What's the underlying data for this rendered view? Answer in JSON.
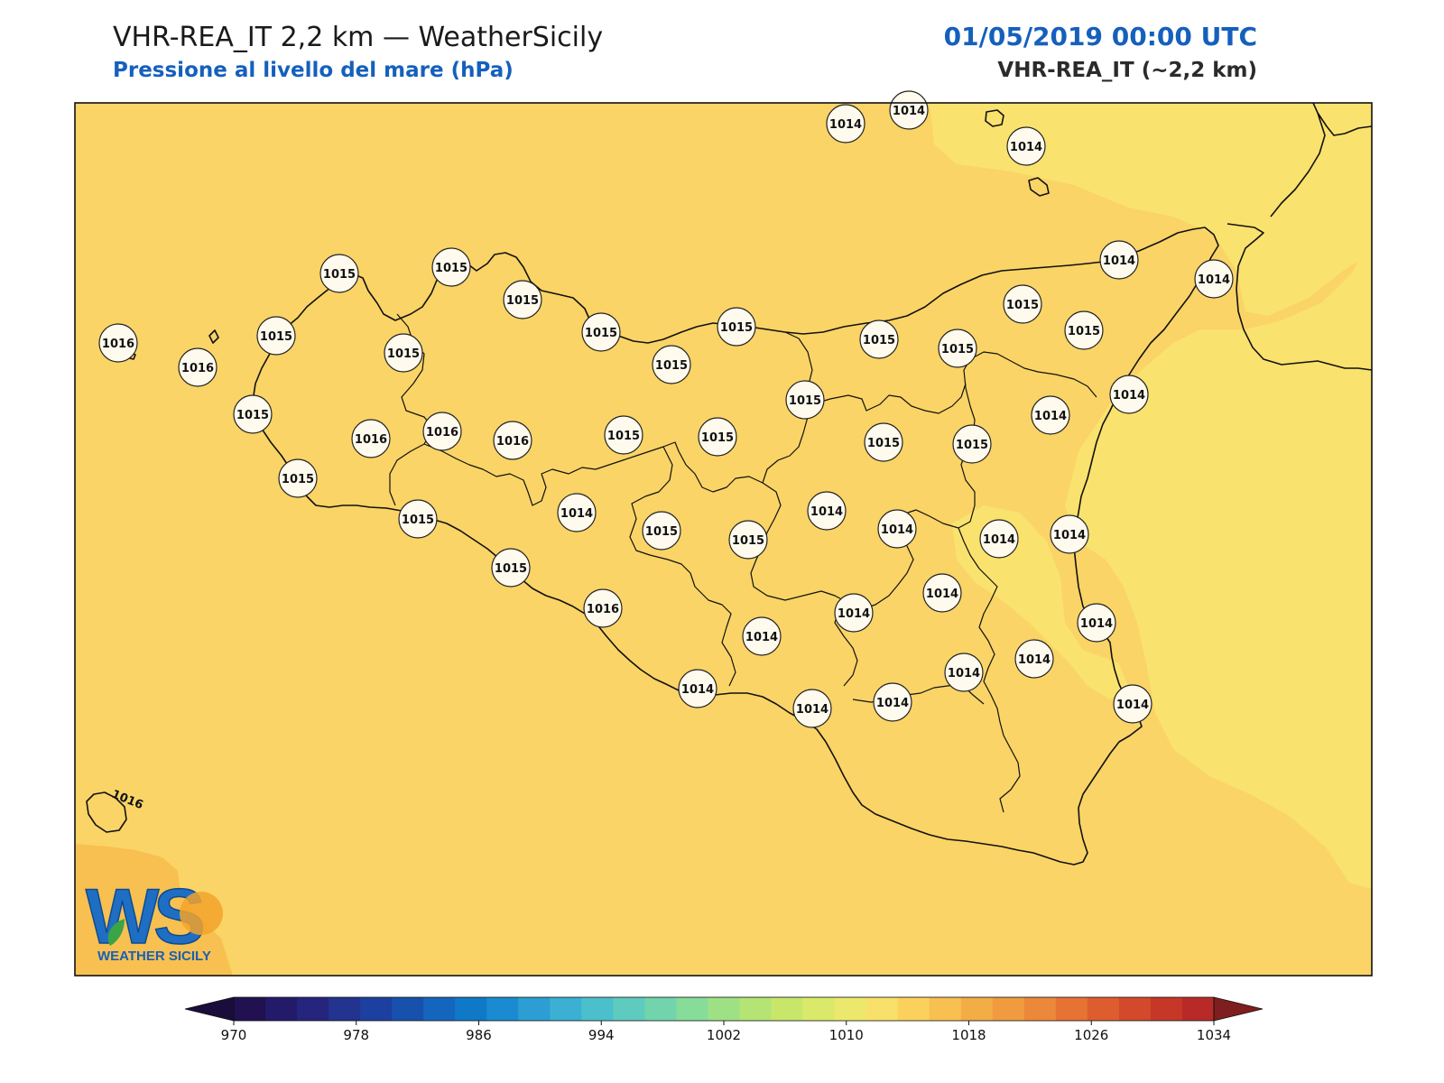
{
  "header": {
    "title": "VHR-REA_IT 2,2 km — WeatherSicily",
    "subtitle": "Pressione al livello del mare (hPa)",
    "datetime": "01/05/2019 00:00 UTC",
    "model": "VHR-REA_IT (~2,2 km)"
  },
  "map": {
    "contour_label": "1016",
    "stations": [
      {
        "name": "pt-1",
        "value": "1014"
      },
      {
        "name": "pt-2",
        "value": "1014"
      },
      {
        "name": "pt-3",
        "value": "1014"
      },
      {
        "name": "pt-4",
        "value": "1015"
      },
      {
        "name": "pt-5",
        "value": "1015"
      },
      {
        "name": "pt-6",
        "value": "1016"
      },
      {
        "name": "pt-7",
        "value": "1015"
      },
      {
        "name": "pt-8",
        "value": "1016"
      },
      {
        "name": "pt-9",
        "value": "1015"
      },
      {
        "name": "pt-10",
        "value": "1015"
      },
      {
        "name": "pt-11",
        "value": "1015"
      },
      {
        "name": "pt-12",
        "value": "1015"
      },
      {
        "name": "pt-13",
        "value": "1015"
      },
      {
        "name": "pt-14",
        "value": "1014"
      },
      {
        "name": "pt-15",
        "value": "1014"
      },
      {
        "name": "pt-16",
        "value": "1015"
      },
      {
        "name": "pt-17",
        "value": "1015"
      },
      {
        "name": "pt-18",
        "value": "1015"
      },
      {
        "name": "pt-19",
        "value": "1016"
      },
      {
        "name": "pt-20",
        "value": "1016"
      },
      {
        "name": "pt-21",
        "value": "1016"
      },
      {
        "name": "pt-22",
        "value": "1015"
      },
      {
        "name": "pt-23",
        "value": "1015"
      },
      {
        "name": "pt-24",
        "value": "1015"
      },
      {
        "name": "pt-25",
        "value": "1015"
      },
      {
        "name": "pt-26",
        "value": "1015"
      },
      {
        "name": "pt-27",
        "value": "1014"
      },
      {
        "name": "pt-28",
        "value": "1014"
      },
      {
        "name": "pt-29",
        "value": "1015"
      },
      {
        "name": "pt-30",
        "value": "1015"
      },
      {
        "name": "pt-31",
        "value": "1014"
      },
      {
        "name": "pt-32",
        "value": "1014"
      },
      {
        "name": "pt-33",
        "value": "1014"
      },
      {
        "name": "pt-34",
        "value": "1014"
      },
      {
        "name": "pt-35",
        "value": "1015"
      },
      {
        "name": "pt-36",
        "value": "1015"
      },
      {
        "name": "pt-37",
        "value": "1014"
      },
      {
        "name": "pt-38",
        "value": "1014"
      },
      {
        "name": "pt-39",
        "value": "1014"
      },
      {
        "name": "pt-40",
        "value": "1014"
      },
      {
        "name": "pt-41",
        "value": "1014"
      },
      {
        "name": "pt-42",
        "value": "1014"
      },
      {
        "name": "pt-43",
        "value": "1015"
      },
      {
        "name": "pt-44",
        "value": "1014"
      },
      {
        "name": "pt-45",
        "value": "1014"
      },
      {
        "name": "pt-46",
        "value": "1015"
      },
      {
        "name": "pt-47",
        "value": "1014"
      },
      {
        "name": "pt-48",
        "value": "1014"
      },
      {
        "name": "pt-49",
        "value": "1015"
      },
      {
        "name": "pt-50",
        "value": "1014"
      },
      {
        "name": "pt-51",
        "value": "1016"
      }
    ]
  },
  "logo": {
    "letters": "WS",
    "text": "WEATHER SICILY"
  },
  "colorbar": {
    "colors": [
      "#221150",
      "#241a6a",
      "#25257e",
      "#223390",
      "#1c409f",
      "#1751ad",
      "#1465bd",
      "#0f79c8",
      "#1a8bd0",
      "#2c9ed3",
      "#3bb0d2",
      "#4cbfcc",
      "#5fcbbf",
      "#72d4ad",
      "#88dc99",
      "#9ee185",
      "#b3e474",
      "#c8e76a",
      "#dbe96a",
      "#ebe86c",
      "#f8e06a",
      "#fbd15b",
      "#f7c050",
      "#f3ad47",
      "#f09b40",
      "#ec883a",
      "#e67234",
      "#de5d2f",
      "#d3492b",
      "#c63728",
      "#b82a27"
    ],
    "under_color": "#1a0d3c",
    "over_color": "#7e1e1e",
    "tick_labels": [
      "970",
      "978",
      "986",
      "994",
      "1002",
      "1010",
      "1018",
      "1026",
      "1034"
    ]
  }
}
